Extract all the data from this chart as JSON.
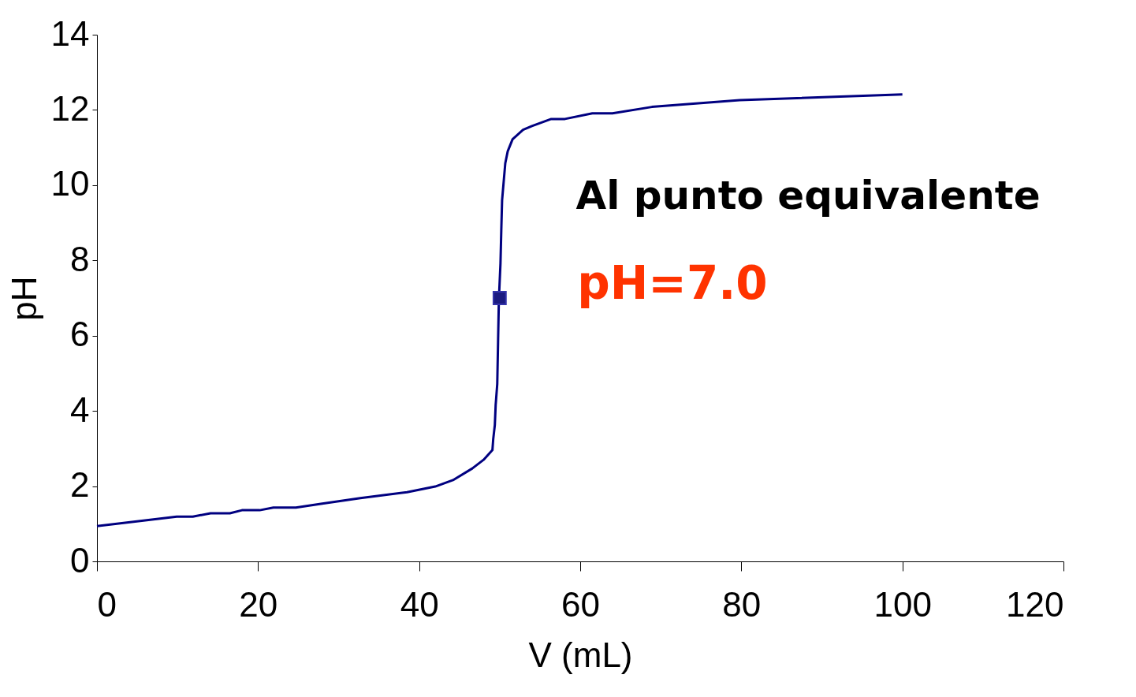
{
  "chart_data": {
    "type": "line",
    "xlabel": "V (mL)",
    "ylabel": "pH",
    "xlim": [
      0,
      120
    ],
    "xticks": [
      0,
      20,
      40,
      60,
      80,
      100,
      120
    ],
    "ylim": [
      0,
      14
    ],
    "yticks": [
      0,
      2,
      4,
      6,
      8,
      10,
      12,
      14
    ],
    "grid": false,
    "annotations": [
      "Al punto equivalente",
      "pH=7.0"
    ],
    "series": [
      {
        "color": "#000080",
        "marker": "none",
        "line_style": "solid",
        "x": [
          0,
          9.9,
          11.9,
          14.1,
          16.5,
          18,
          20.2,
          21.9,
          24.7,
          27.8,
          32.7,
          38.5,
          42,
          44.2,
          46.6,
          48,
          49.1,
          49.2,
          49.4,
          49.5,
          49.7,
          49.8,
          49.9,
          50.1,
          50.2,
          50.3,
          50.5,
          50.7,
          51.0,
          51.6,
          52.9,
          54,
          56.4,
          58.1,
          61.5,
          64,
          68.9,
          79.8,
          100
        ],
        "values": [
          0.94,
          1.19,
          1.19,
          1.28,
          1.28,
          1.36,
          1.36,
          1.43,
          1.43,
          1.53,
          1.68,
          1.84,
          1.99,
          2.16,
          2.47,
          2.7,
          2.96,
          3.25,
          3.63,
          4.15,
          4.72,
          5.83,
          6.96,
          7.92,
          8.8,
          9.6,
          10.1,
          10.59,
          10.9,
          11.22,
          11.47,
          11.57,
          11.76,
          11.76,
          11.91,
          11.91,
          12.08,
          12.26,
          12.41
        ]
      },
      {
        "type": "scatter",
        "color": "#1a1a80",
        "marker": "square",
        "x": [
          50
        ],
        "values": [
          7.0
        ]
      }
    ]
  }
}
